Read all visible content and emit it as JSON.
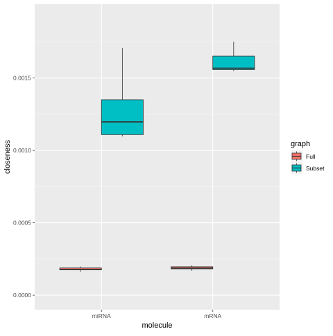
{
  "chart_data": {
    "type": "boxplot",
    "xlabel": "molecule",
    "ylabel": "closeness",
    "categories": [
      "miRNA",
      "mRNA"
    ],
    "y_ticks": [
      0.0,
      0.0005,
      0.001,
      0.0015
    ],
    "y_tick_labels": [
      "0.0000",
      "0.0005",
      "0.0010",
      "0.0015"
    ],
    "ylim": [
      -0.0001,
      0.00201
    ],
    "grid": true,
    "legend": {
      "title": "graph",
      "position": "right",
      "entries": [
        "Full",
        "Subset"
      ]
    },
    "series": [
      {
        "name": "Full",
        "color": "#F8766D",
        "boxes": [
          {
            "category": "miRNA",
            "min": 0.000161,
            "q1": 0.000175,
            "median": 0.000178,
            "q3": 0.000188,
            "max": 0.000198
          },
          {
            "category": "mRNA",
            "min": 0.000168,
            "q1": 0.000182,
            "median": 0.000187,
            "q3": 0.000197,
            "max": 0.000206
          }
        ]
      },
      {
        "name": "Subset",
        "color": "#00BFC4",
        "boxes": [
          {
            "category": "miRNA",
            "min": 0.001097,
            "q1": 0.001109,
            "median": 0.001197,
            "q3": 0.00135,
            "max": 0.001707
          },
          {
            "category": "mRNA",
            "min": 0.001548,
            "q1": 0.001558,
            "median": 0.001568,
            "q3": 0.001651,
            "max": 0.00175
          }
        ]
      }
    ]
  }
}
